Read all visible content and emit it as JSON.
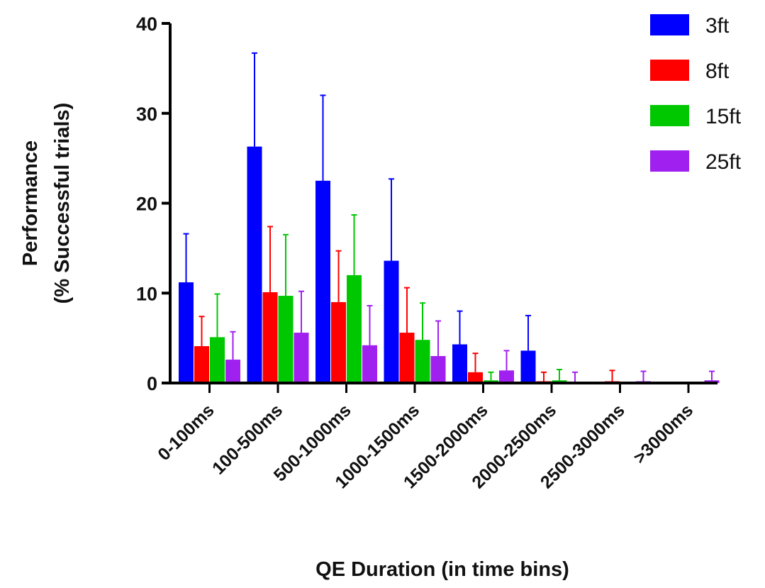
{
  "chart_data": {
    "type": "bar",
    "title": "",
    "xlabel": "QE Duration (in time bins)",
    "ylabel_line1": "Performance",
    "ylabel_line2": "(% Successful trials)",
    "ylim": [
      0,
      40
    ],
    "yticks": [
      "0",
      "10",
      "20",
      "30",
      "40"
    ],
    "grid": false,
    "legend_position": "top-right",
    "categories": [
      "0-100ms",
      "100-500ms",
      "500-1000ms",
      "1000-1500ms",
      "1500-2000ms",
      "2000-2500ms",
      "2500-3000ms",
      ">3000ms"
    ],
    "series": [
      {
        "name": "3ft",
        "color": "#0000ff",
        "values": [
          11.2,
          26.3,
          22.5,
          13.6,
          4.3,
          3.6,
          0,
          0
        ],
        "error": [
          5.4,
          10.4,
          9.5,
          9.1,
          3.7,
          3.9,
          0,
          0
        ]
      },
      {
        "name": "8ft",
        "color": "#ff0000",
        "values": [
          4.1,
          10.1,
          9.0,
          5.6,
          1.2,
          0.2,
          0.2,
          0
        ],
        "error": [
          3.3,
          7.3,
          5.7,
          5.0,
          2.1,
          1.0,
          1.2,
          0
        ]
      },
      {
        "name": "15ft",
        "color": "#00c800",
        "values": [
          5.1,
          9.7,
          12.0,
          4.8,
          0.3,
          0.3,
          0,
          0
        ],
        "error": [
          4.8,
          6.8,
          6.7,
          4.1,
          0.9,
          1.2,
          0,
          0
        ]
      },
      {
        "name": "25ft",
        "color": "#a020f0",
        "values": [
          2.6,
          5.6,
          4.2,
          3.0,
          1.4,
          0.1,
          0.2,
          0.3
        ],
        "error": [
          3.1,
          4.6,
          4.4,
          3.9,
          2.2,
          1.1,
          1.1,
          1.0
        ]
      }
    ]
  }
}
